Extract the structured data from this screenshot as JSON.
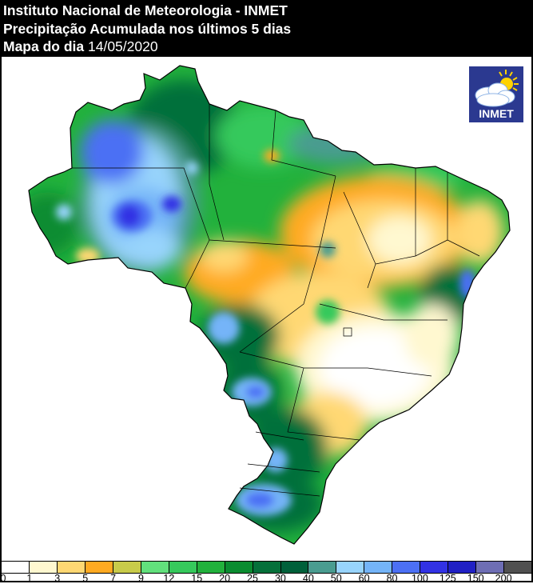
{
  "header": {
    "line1": "Instituto Nacional de Meteorologia - INMET",
    "line2": "Precipitação Acumulada nos últimos 5 dias",
    "line3_label": "Mapa do dia",
    "line3_date": "14/05/2020"
  },
  "logo": {
    "text": "INMET",
    "icon": "cloud-sun-icon",
    "bg_color": "#2b3990",
    "sun_color": "#ffd200"
  },
  "map": {
    "subject": "Brazil",
    "variable": "Accumulated precipitation (5 days)",
    "date": "14/05/2020"
  },
  "legend": {
    "labels": [
      "0",
      "1",
      "3",
      "5",
      "7",
      "9",
      "12",
      "15",
      "20",
      "25",
      "30",
      "40",
      "50",
      "60",
      "80",
      "100",
      "125",
      "150",
      "200"
    ],
    "colors": [
      "#ffffff",
      "#fff8d0",
      "#ffd873",
      "#ffaa22",
      "#c8cb4a",
      "#62e07c",
      "#36c95c",
      "#22b13c",
      "#0a8c30",
      "#05703a",
      "#00603a",
      "#4a9c90",
      "#98d4fc",
      "#74b4f8",
      "#4c70f4",
      "#3232e4",
      "#2020c4",
      "#6e6eb4",
      "#505050"
    ]
  }
}
